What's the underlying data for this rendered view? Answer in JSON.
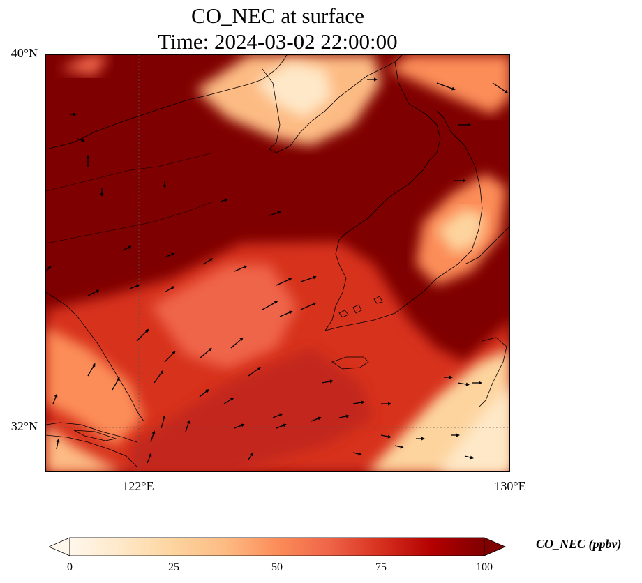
{
  "title": {
    "line1": "CO_NEC at surface",
    "line2": "Time: 2024-03-02 22:00:00"
  },
  "map": {
    "lat_ticks": [
      "40°N",
      "32°N"
    ],
    "lon_ticks": [
      "122°E",
      "130°E"
    ],
    "lat_range": [
      31,
      40
    ],
    "lon_range": [
      120,
      130
    ],
    "gridlines": "dotted"
  },
  "colorbar": {
    "label": "CO_NEC (ppbv)",
    "ticks": [
      "0",
      "25",
      "50",
      "75",
      "100"
    ],
    "range": [
      0,
      100
    ],
    "extend": "both",
    "colormap": "OrRd"
  },
  "colors": {
    "high": "#7f0000",
    "low": "#fff7ec",
    "coast": "#000000"
  }
}
